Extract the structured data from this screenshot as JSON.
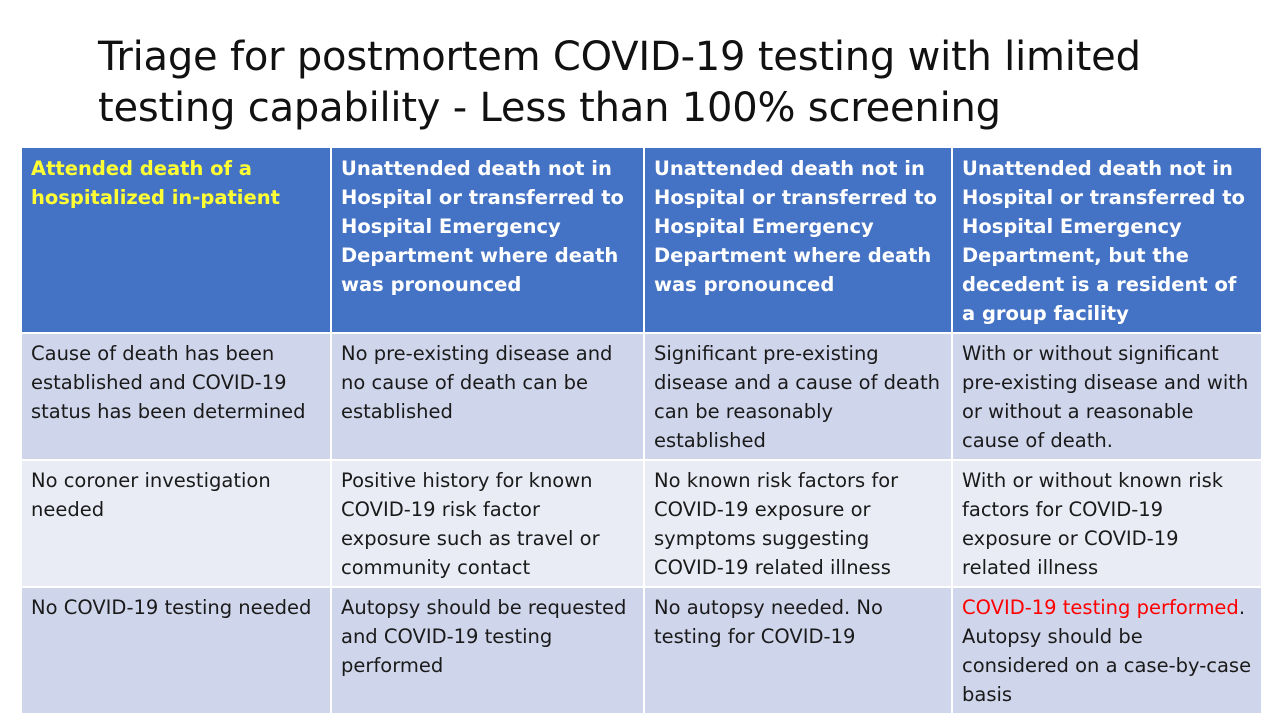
{
  "title": {
    "line1": "Triage for postmortem COVID-19 testing with limited",
    "line2": "testing capability - Less than 100% screening"
  },
  "colors": {
    "header_bg": "#4472c4",
    "header_highlight": "#ffff33",
    "row_dark": "#cfd5ea",
    "row_light": "#e9ebf5",
    "alert_red": "#ff0000"
  },
  "table": {
    "headers": [
      "Attended death of a hospitalized in-patient",
      "Unattended death not in Hospital  or transferred to Hospital Emergency Department where death was pronounced",
      "Unattended death not in Hospital  or transferred to Hospital Emergency Department where death was pronounced",
      "Unattended death not in Hospital  or transferred to Hospital Emergency Department, but the decedent is a resident of a group facility"
    ],
    "rows": [
      [
        "Cause of death has been established and COVID-19 status has been determined",
        "No pre-existing disease and no cause of death can be established",
        "Significant pre-existing disease and a cause of death can be reasonably established",
        "With or without significant pre-existing disease and with or without a reasonable cause of death."
      ],
      [
        "No coroner investigation needed",
        "Positive history for known COVID-19 risk factor exposure such as travel or community contact",
        "No known risk factors for COVID-19 exposure or symptoms suggesting COVID-19 related illness",
        "With or without known risk factors for COVID-19 exposure or COVID-19 related illness"
      ],
      [
        "No COVID-19 testing needed",
        "Autopsy should be requested and COVID-19 testing performed",
        "No autopsy needed. No testing for COVID-19",
        {
          "highlight": "COVID-19 testing performed",
          "rest_start": ".",
          "rest": "Autopsy should be considered on a case-by-case basis"
        }
      ]
    ]
  }
}
